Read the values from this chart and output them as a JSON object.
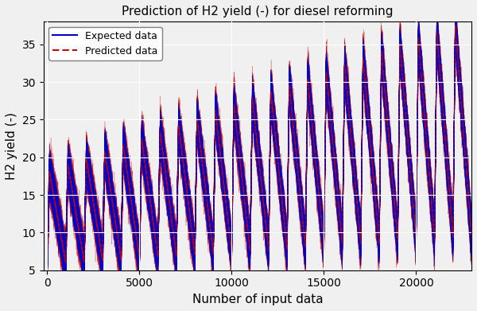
{
  "title": "Prediction of H2 yield (-) for diesel reforming",
  "xlabel": "Number of input data",
  "ylabel": "H2 yield (-)",
  "xlim": [
    -200,
    23000
  ],
  "ylim": [
    5,
    38
  ],
  "yticks": [
    5,
    10,
    15,
    20,
    25,
    30,
    35
  ],
  "xticks": [
    0,
    5000,
    10000,
    15000,
    20000
  ],
  "n_cycles": 23,
  "total_points": 23000,
  "peak_start": 18.0,
  "peak_end": 37.5,
  "min_start": 6.0,
  "min_end": 9.5,
  "blue_color": "#0000cc",
  "red_color": "#cc0000",
  "legend_blue_label": "Expected data",
  "legend_red_label": "Predicted data",
  "background_color": "#f0f0f0",
  "grid_color": "white",
  "points_per_cycle": 1000,
  "n_series": 80
}
